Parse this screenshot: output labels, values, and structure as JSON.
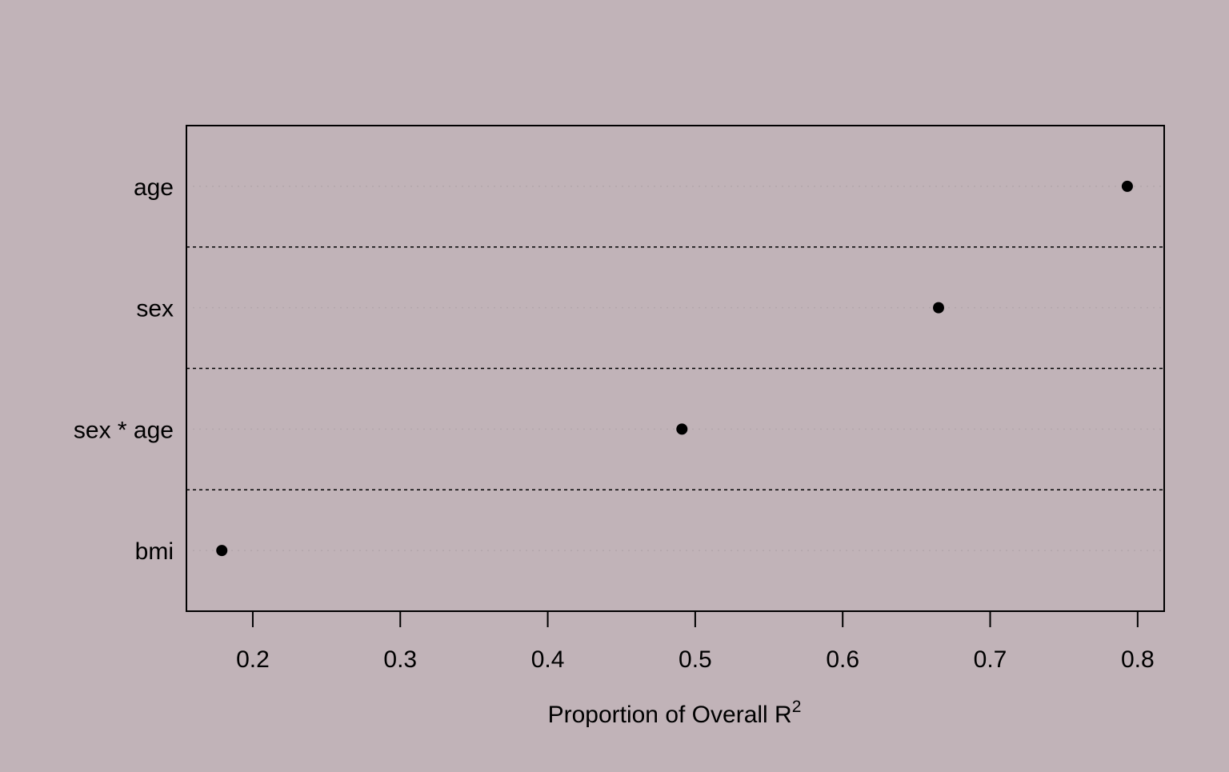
{
  "chart_data": {
    "type": "scatter",
    "subtype": "dotchart",
    "title": "",
    "xlabel": "Proportion of Overall R",
    "xlabel_superscript": "2",
    "ylabel": "",
    "categories": [
      "age",
      "sex",
      "sex * age",
      "bmi"
    ],
    "values": [
      0.793,
      0.665,
      0.491,
      0.179
    ],
    "xlim": [
      0.155,
      0.818
    ],
    "x_ticks": [
      0.2,
      0.3,
      0.4,
      0.5,
      0.6,
      0.7,
      0.8
    ],
    "x_tick_labels": [
      "0.2",
      "0.3",
      "0.4",
      "0.5",
      "0.6",
      "0.7",
      "0.8"
    ],
    "group_separators": "dashed lines between categories",
    "row_guides": "dotted light grey",
    "grid": false,
    "colors": {
      "background": "#c1b3b8",
      "points": "#000000",
      "guides": "#b3a6ab"
    }
  }
}
